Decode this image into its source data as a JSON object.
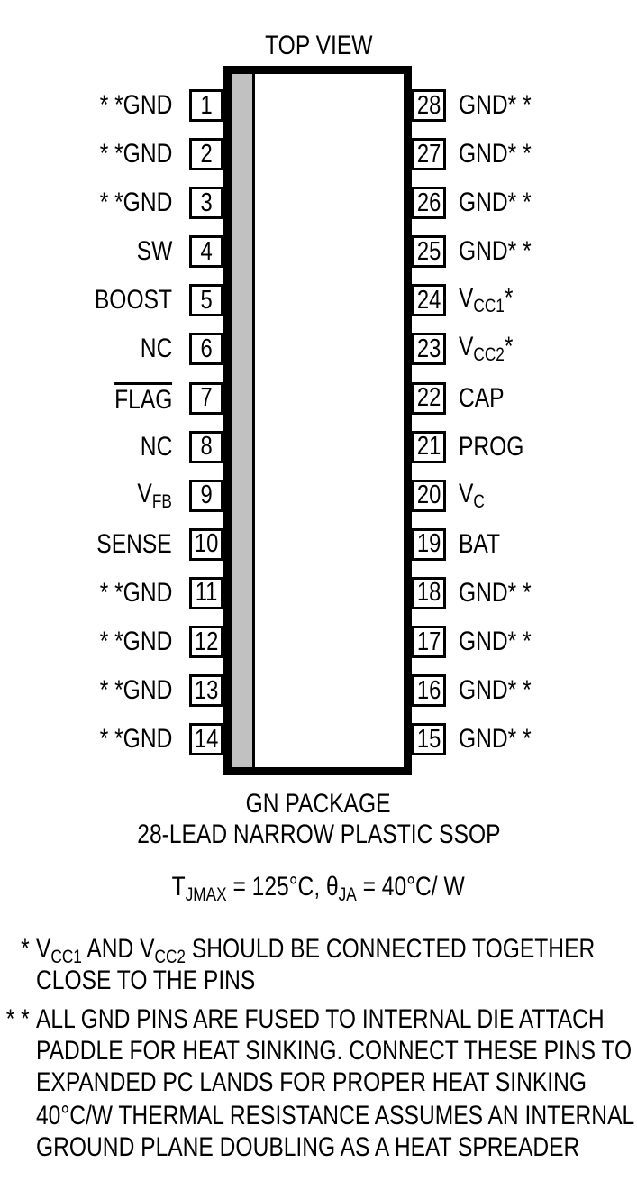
{
  "colors": {
    "ink": "#000000",
    "pin1_stripe": "#c1c1c1",
    "background": "#ffffff"
  },
  "title": "TOP VIEW",
  "pins": {
    "left": [
      {
        "num": "1",
        "text": "* *GND"
      },
      {
        "num": "2",
        "text": "* *GND"
      },
      {
        "num": "3",
        "text": "* *GND"
      },
      {
        "num": "4",
        "text": "SW"
      },
      {
        "num": "5",
        "text": "BOOST"
      },
      {
        "num": "6",
        "text": "NC"
      },
      {
        "num": "7",
        "over": "FLAG"
      },
      {
        "num": "8",
        "text": "NC"
      },
      {
        "num": "9",
        "base": "V",
        "sub": "FB"
      },
      {
        "num": "10",
        "text": "SENSE"
      },
      {
        "num": "11",
        "text": "* *GND"
      },
      {
        "num": "12",
        "text": "* *GND"
      },
      {
        "num": "13",
        "text": "* *GND"
      },
      {
        "num": "14",
        "text": "* *GND"
      }
    ],
    "right": [
      {
        "num": "28",
        "text": "GND* *"
      },
      {
        "num": "27",
        "text": "GND* *"
      },
      {
        "num": "26",
        "text": "GND* *"
      },
      {
        "num": "25",
        "text": "GND* *"
      },
      {
        "num": "24",
        "base": "V",
        "sub": "CC1",
        "post": "*"
      },
      {
        "num": "23",
        "base": "V",
        "sub": "CC2",
        "post": "*"
      },
      {
        "num": "22",
        "text": "CAP"
      },
      {
        "num": "21",
        "text": "PROG"
      },
      {
        "num": "20",
        "base": "V",
        "sub": "C"
      },
      {
        "num": "19",
        "text": "BAT"
      },
      {
        "num": "18",
        "text": "GND* *"
      },
      {
        "num": "17",
        "text": "GND* *"
      },
      {
        "num": "16",
        "text": "GND* *"
      },
      {
        "num": "15",
        "text": "GND* *"
      }
    ]
  },
  "package": {
    "name": "GN PACKAGE",
    "description": "28-LEAD NARROW PLASTIC SSOP",
    "thermal": {
      "t1": "T",
      "s1": "JMAX",
      "t2": " = 125°C, θ",
      "s2": "JA",
      "t3": " = 40°C/ W"
    }
  },
  "notes": [
    {
      "marker": "*",
      "line1": {
        "t1": "V",
        "s1": "CC1",
        "t2": " AND V",
        "s2": "CC2",
        "t3": " SHOULD BE CONNECTED TOGETHER"
      },
      "line2": "CLOSE TO THE PINS"
    },
    {
      "marker": "* *",
      "lines": [
        "ALL GND PINS ARE FUSED TO INTERNAL DIE ATTACH",
        "PADDLE FOR HEAT SINKING. CONNECT THESE PINS TO",
        "EXPANDED PC LANDS FOR PROPER HEAT SINKING"
      ]
    },
    {
      "marker": "",
      "lines": [
        "40°C/W THERMAL RESISTANCE ASSUMES AN INTERNAL",
        "GROUND PLANE DOUBLING AS A HEAT SPREADER"
      ]
    }
  ]
}
